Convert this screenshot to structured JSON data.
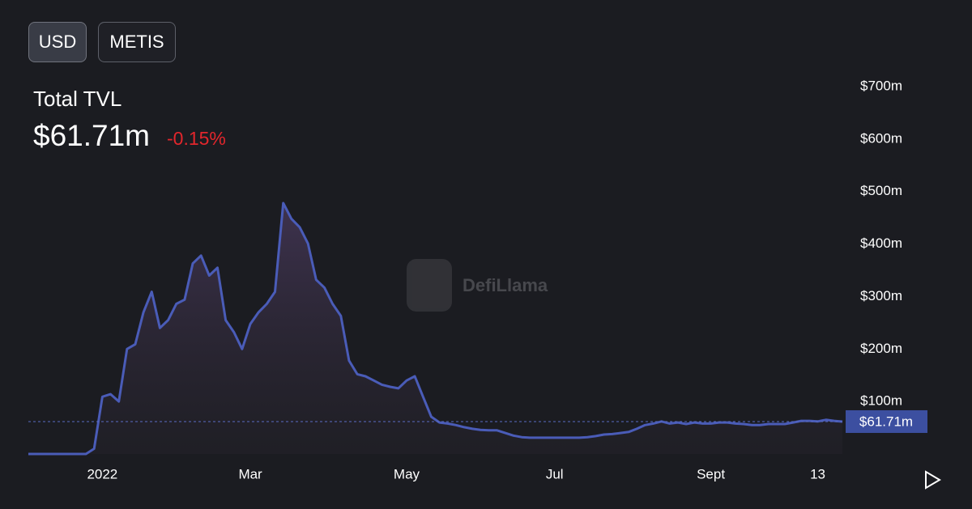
{
  "controls": {
    "currency": [
      "USD",
      "METIS"
    ]
  },
  "chart_data": {
    "type": "area",
    "title": "Total TVL",
    "change": "-0.15%",
    "watermark": "DefiLlama",
    "current": {
      "value": 61.71,
      "label": "$61.71m"
    },
    "color": "#4a5cb8",
    "categories": [
      null,
      null,
      null,
      null,
      null,
      null,
      null,
      null,
      null,
      "2022",
      null,
      null,
      null,
      null,
      null,
      null,
      null,
      null,
      null,
      null,
      null,
      null,
      null,
      null,
      null,
      null,
      null,
      "Mar",
      null,
      null,
      null,
      null,
      null,
      null,
      null,
      null,
      null,
      null,
      null,
      null,
      null,
      null,
      null,
      null,
      null,
      null,
      "May",
      null,
      null,
      null,
      null,
      null,
      null,
      null,
      null,
      null,
      null,
      null,
      null,
      null,
      null,
      null,
      null,
      null,
      "Jul",
      null,
      null,
      null,
      null,
      null,
      null,
      null,
      null,
      null,
      null,
      null,
      null,
      null,
      null,
      null,
      null,
      null,
      null,
      "Sept",
      null,
      null,
      null,
      null,
      null,
      null,
      null,
      null,
      null,
      null,
      null,
      null,
      "13",
      null,
      null,
      null
    ],
    "values": [
      0,
      0,
      0,
      0,
      0,
      0,
      0,
      0,
      10,
      109,
      114,
      100,
      200,
      209,
      270,
      309,
      240,
      255,
      286,
      294,
      363,
      378,
      340,
      355,
      255,
      232,
      200,
      248,
      270,
      286,
      309,
      478,
      448,
      432,
      401,
      332,
      317,
      286,
      263,
      178,
      152,
      148,
      140,
      132,
      128,
      125,
      140,
      148,
      109,
      71,
      60,
      58,
      55,
      51,
      48,
      46,
      45,
      45,
      40,
      35,
      32,
      31,
      31,
      31,
      31,
      31,
      31,
      31,
      32,
      34,
      37,
      38,
      40,
      42,
      48,
      55,
      58,
      62,
      58,
      60,
      57,
      60,
      58,
      58,
      60,
      60,
      58,
      57,
      55,
      55,
      57,
      57,
      57,
      60,
      63,
      63,
      62,
      65,
      63,
      61.71
    ],
    "ylim": [
      0,
      700
    ],
    "yticks": [
      {
        "value": 100,
        "label": "$100m"
      },
      {
        "value": 200,
        "label": "$200m"
      },
      {
        "value": 300,
        "label": "$300m"
      },
      {
        "value": 400,
        "label": "$400m"
      },
      {
        "value": 500,
        "label": "$500m"
      },
      {
        "value": 600,
        "label": "$600m"
      },
      {
        "value": 700,
        "label": "$700m"
      }
    ]
  }
}
